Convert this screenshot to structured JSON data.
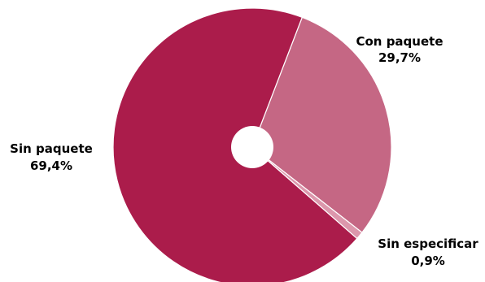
{
  "chart_data": {
    "type": "pie",
    "donut": true,
    "slices": [
      {
        "label": "Con paquete",
        "value": 29.7,
        "value_label": "29,7%",
        "color": "#c56784"
      },
      {
        "label": "Sin especificar",
        "value": 0.9,
        "value_label": "0,9%",
        "color": "#dc97ac"
      },
      {
        "label": "Sin paquete",
        "value": 69.4,
        "value_label": "69,4%",
        "color": "#ab1c4b"
      }
    ]
  }
}
